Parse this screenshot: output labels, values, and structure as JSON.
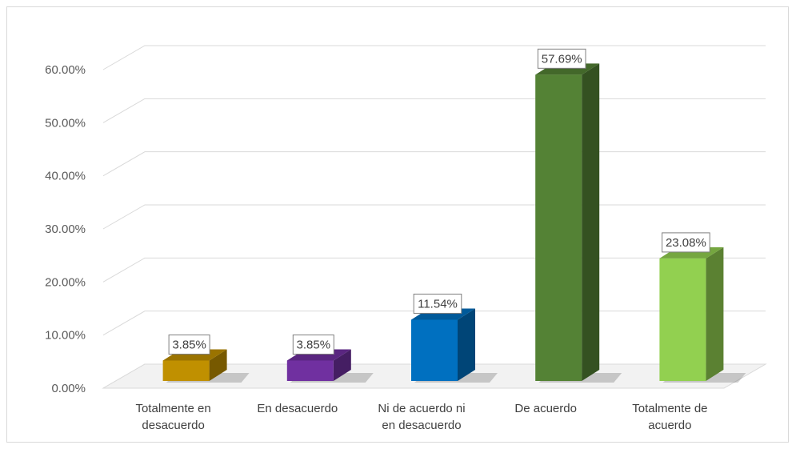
{
  "chart_data": {
    "type": "bar",
    "categories": [
      [
        "Totalmente en",
        "desacuerdo"
      ],
      [
        "En desacuerdo"
      ],
      [
        "Ni de acuerdo ni",
        "en desacuerdo"
      ],
      [
        "De acuerdo"
      ],
      [
        "Totalmente  de",
        "acuerdo"
      ]
    ],
    "values": [
      3.85,
      3.85,
      11.54,
      57.69,
      23.08
    ],
    "value_labels": [
      "3.85%",
      "3.85%",
      "11.54%",
      "57.69%",
      "23.08%"
    ],
    "colors": [
      "#c09000",
      "#7030a0",
      "#0070c0",
      "#548235",
      "#92d050"
    ],
    "ylim": [
      0,
      60
    ],
    "yticks": [
      0,
      10,
      20,
      30,
      40,
      50,
      60
    ],
    "ytick_labels": [
      "0.00%",
      "10.00%",
      "20.00%",
      "30.00%",
      "40.00%",
      "50.00%",
      "60.00%"
    ],
    "title": "",
    "xlabel": "",
    "ylabel": "",
    "grid": true,
    "legend": "none",
    "style": "3d-column"
  }
}
